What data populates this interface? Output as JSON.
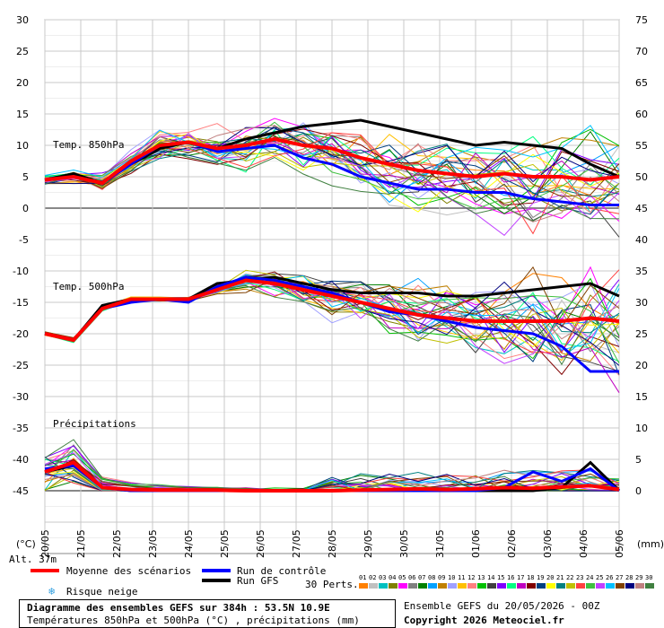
{
  "chart_data": {
    "type": "line",
    "left_axis_unit": "(°C)",
    "right_axis_unit": "(mm)",
    "left_ticks": [
      30,
      25,
      20,
      15,
      10,
      5,
      0,
      -5,
      -10,
      -15,
      -20,
      -25,
      -30,
      -35,
      -40,
      -45
    ],
    "right_ticks_temp850": [
      75,
      70,
      65,
      60,
      55,
      50,
      45,
      40
    ],
    "right_ticks_temp500": [
      35,
      30,
      25,
      20,
      15,
      10,
      5,
      0
    ],
    "x_dates": [
      "20/05",
      "21/05",
      "22/05",
      "23/05",
      "24/05",
      "25/05",
      "26/05",
      "27/05",
      "28/05",
      "29/05",
      "30/05",
      "31/05",
      "01/06",
      "02/06",
      "03/06",
      "04/06",
      "05/06"
    ],
    "panel_labels": {
      "t850": "Temp. 850hPa",
      "t500": "Temp. 500hPa",
      "precip": "Précipitations"
    },
    "series_850": {
      "mean": [
        4.5,
        5.0,
        4.0,
        7.5,
        10.0,
        10.5,
        9.5,
        10.0,
        11.0,
        10.0,
        9.5,
        8.0,
        7.0,
        6.0,
        5.5,
        5.0,
        5.5,
        5.0,
        5.0,
        4.5,
        5.0
      ],
      "control": [
        4.5,
        5.0,
        4.0,
        7.0,
        10.0,
        10.5,
        9.0,
        9.5,
        10.0,
        8.0,
        7.0,
        5.0,
        4.0,
        3.0,
        3.0,
        2.5,
        2.5,
        1.5,
        1.0,
        0.5,
        0.5
      ],
      "gfs": [
        4.5,
        5.5,
        4.0,
        7.0,
        9.5,
        10.5,
        9.5,
        11.0,
        12.0,
        13.0,
        13.5,
        14.0,
        13.0,
        12.0,
        11.0,
        10.0,
        10.5,
        10.0,
        9.5,
        7.0,
        5.0
      ]
    },
    "series_500": {
      "mean": [
        -20.0,
        -21.0,
        -16.0,
        -14.5,
        -14.5,
        -14.5,
        -13.0,
        -11.5,
        -12.0,
        -13.0,
        -14.0,
        -15.0,
        -16.0,
        -17.0,
        -17.5,
        -18.0,
        -18.0,
        -18.0,
        -18.0,
        -17.5,
        -18.0
      ],
      "control": [
        -20.0,
        -21.0,
        -16.0,
        -15.0,
        -14.5,
        -15.0,
        -12.5,
        -11.0,
        -11.5,
        -12.5,
        -13.5,
        -15.0,
        -16.5,
        -17.0,
        -18.0,
        -19.0,
        -19.5,
        -20.0,
        -22.0,
        -26.0,
        -26.0
      ],
      "gfs": [
        -20.0,
        -21.0,
        -15.5,
        -14.5,
        -14.5,
        -14.5,
        -12.0,
        -11.5,
        -11.0,
        -12.0,
        -13.0,
        -13.5,
        -13.5,
        -13.5,
        -14.0,
        -14.0,
        -13.5,
        -13.0,
        -12.5,
        -12.0,
        -14.0
      ]
    },
    "series_precip": {
      "mean": [
        3.0,
        4.5,
        0.5,
        0.2,
        0.1,
        0.1,
        0.1,
        0.0,
        0.0,
        0.0,
        0.0,
        0.1,
        0.2,
        0.3,
        0.2,
        0.3,
        0.5,
        0.4,
        0.6,
        0.8,
        0.2
      ],
      "control": [
        3.5,
        4.0,
        0.5,
        0.0,
        0.0,
        0.0,
        0.0,
        0.0,
        0.0,
        0.0,
        0.0,
        0.0,
        0.0,
        0.0,
        0.0,
        0.0,
        0.5,
        3.0,
        1.5,
        3.5,
        0.0
      ],
      "gfs": [
        3.0,
        4.0,
        0.5,
        0.0,
        0.0,
        0.0,
        0.0,
        0.0,
        0.0,
        0.0,
        0.0,
        0.0,
        0.0,
        0.0,
        0.0,
        0.0,
        0.0,
        0.0,
        0.5,
        4.5,
        0.0
      ]
    },
    "member_colors": [
      "#ff8000",
      "#c0c0c0",
      "#00c0c0",
      "#808000",
      "#ff00ff",
      "#808080",
      "#008000",
      "#00a0ff",
      "#c08000",
      "#a0a0ff",
      "#ffc000",
      "#ff8080",
      "#00c000",
      "#404040",
      "#8000ff",
      "#00ff80",
      "#c000c0",
      "#800000",
      "#004080",
      "#ffff00",
      "#008080",
      "#c0c000",
      "#ff4040",
      "#40c040",
      "#c040ff",
      "#00c0ff",
      "#804000",
      "#000080",
      "#c08080",
      "#408040"
    ]
  },
  "legend": {
    "altitude": "Alt. 37m",
    "mean_label": "Moyenne des scénarios",
    "control_label": "Run de contrôle",
    "gfs_label": "Run GFS",
    "snow_label": "Risque neige",
    "perts_label": "30 Perts.",
    "pert_numbers": [
      "01",
      "02",
      "03",
      "04",
      "05",
      "06",
      "07",
      "08",
      "09",
      "10",
      "11",
      "12",
      "13",
      "14",
      "15",
      "16",
      "17",
      "18",
      "19",
      "20",
      "21",
      "22",
      "23",
      "24",
      "25",
      "26",
      "27",
      "28",
      "29",
      "30"
    ],
    "mean_color": "#ff0000",
    "control_color": "#0000ff",
    "gfs_color": "#000000"
  },
  "footer": {
    "title": "Diagramme des ensembles GEFS sur 384h : 53.5N 10.9E",
    "subtitle": "Températures 850hPa et 500hPa (°C) , précipitations (mm)",
    "run_info": "Ensemble GEFS du 20/05/2026 - 00Z",
    "copyright": "Copyright 2026 Meteociel.fr"
  }
}
